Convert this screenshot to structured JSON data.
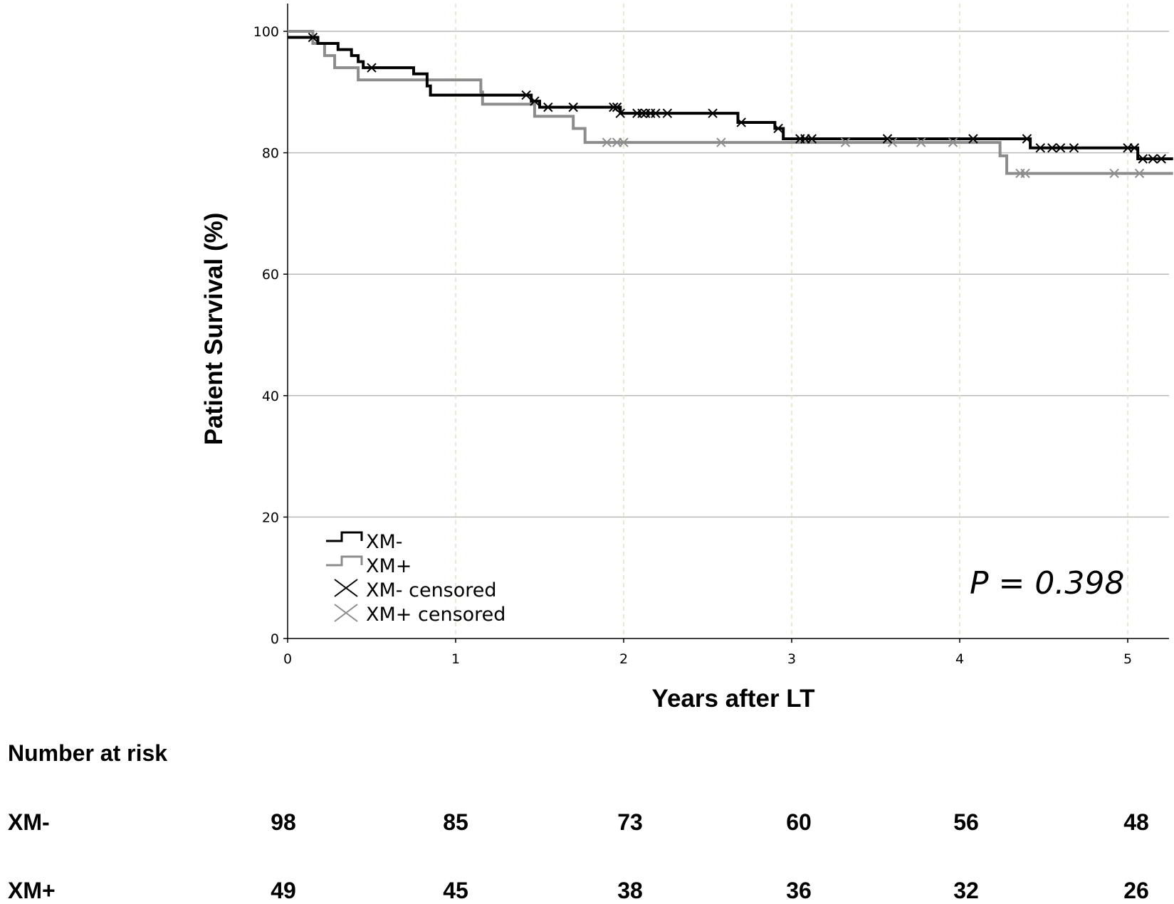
{
  "chart_data": {
    "type": "line",
    "subtype": "kaplan-meier",
    "xlabel": "Years after LT",
    "ylabel": "Patient Survival (%)",
    "xlim": [
      0,
      5.27
    ],
    "ylim": [
      0,
      105
    ],
    "x_ticks": [
      0,
      1,
      2,
      3,
      4,
      5
    ],
    "y_ticks": [
      0,
      20,
      40,
      60,
      80,
      100
    ],
    "grid": "horizontal solid at y ticks, vertical dashed at x ticks",
    "legend_position": "bottom-left",
    "annotation": "P = 0.398",
    "series": [
      {
        "name": "XM-",
        "color": "#000000",
        "steps": [
          [
            0,
            99
          ],
          [
            0.18,
            98
          ],
          [
            0.3,
            97
          ],
          [
            0.38,
            96
          ],
          [
            0.42,
            95
          ],
          [
            0.45,
            94
          ],
          [
            0.75,
            93
          ],
          [
            0.83,
            91
          ],
          [
            0.85,
            89.5
          ],
          [
            1.45,
            88.5
          ],
          [
            1.5,
            87.5
          ],
          [
            1.98,
            86.5
          ],
          [
            2.68,
            85
          ],
          [
            2.9,
            84
          ],
          [
            2.95,
            82.3
          ],
          [
            4.42,
            80.8
          ],
          [
            5.06,
            79
          ]
        ],
        "end_x": 5.27,
        "censored_x": [
          0.15,
          0.5,
          1.42,
          1.47,
          1.55,
          1.7,
          1.94,
          1.96,
          1.98,
          2.08,
          2.11,
          2.13,
          2.16,
          2.19,
          2.26,
          2.53,
          2.7,
          2.92,
          3.05,
          3.08,
          3.12,
          3.57,
          4.08,
          4.4,
          4.48,
          4.55,
          4.6,
          4.68,
          5.0,
          5.04,
          5.09,
          5.15,
          5.2
        ]
      },
      {
        "name": "XM+",
        "color": "#8c8c8c",
        "steps": [
          [
            0,
            100
          ],
          [
            0.15,
            98
          ],
          [
            0.22,
            96
          ],
          [
            0.28,
            94
          ],
          [
            0.42,
            92
          ],
          [
            1.15,
            90
          ],
          [
            1.16,
            88
          ],
          [
            1.47,
            86
          ],
          [
            1.7,
            84
          ],
          [
            1.77,
            81.7
          ],
          [
            4.24,
            79.5
          ],
          [
            4.28,
            76.6
          ]
        ],
        "end_x": 5.27,
        "censored_x": [
          1.9,
          1.96,
          2.0,
          2.58,
          3.32,
          3.6,
          3.77,
          3.96,
          4.36,
          4.39,
          4.92,
          5.07
        ]
      }
    ],
    "legend_items": [
      "XM-",
      "XM+",
      "XM- censored",
      "XM+ censored"
    ]
  },
  "risk_table": {
    "title": "Number at risk",
    "rows": [
      {
        "label": "XM-",
        "values": [
          "98",
          "85",
          "73",
          "60",
          "56",
          "48"
        ]
      },
      {
        "label": "XM+",
        "values": [
          "49",
          "45",
          "38",
          "36",
          "32",
          "26"
        ]
      }
    ]
  }
}
